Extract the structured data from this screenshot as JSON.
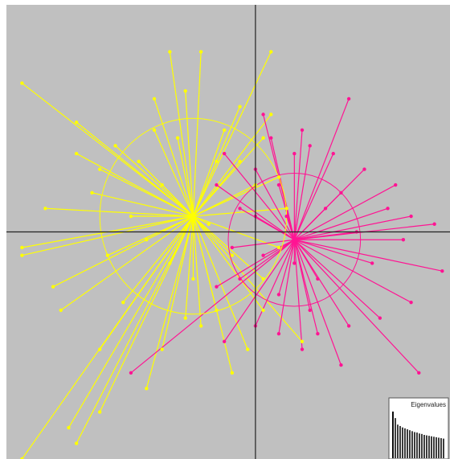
{
  "chart_data": {
    "type": "scatter",
    "chart_style": "star-plot",
    "background_color": "#c0c0c0",
    "axes_color": "#222222",
    "grid": false,
    "title": "",
    "xlabel": "",
    "ylabel": "",
    "xlim": [
      -3.2,
      2.5
    ],
    "ylim": [
      -2.9,
      2.9
    ],
    "groups": [
      {
        "color": "#ffff00",
        "centroid": [
          -0.8,
          0.2
        ],
        "ellipse": {
          "rx": 1.2,
          "ry": 1.25
        },
        "points": [
          [
            -3.0,
            1.9
          ],
          [
            -1.1,
            2.3
          ],
          [
            -0.7,
            2.3
          ],
          [
            -1.3,
            1.7
          ],
          [
            -0.9,
            1.8
          ],
          [
            -0.2,
            1.6
          ],
          [
            0.2,
            2.3
          ],
          [
            -2.3,
            1.0
          ],
          [
            -2.7,
            0.3
          ],
          [
            -3.0,
            -0.2
          ],
          [
            -3.0,
            -0.3
          ],
          [
            -2.6,
            -0.7
          ],
          [
            -2.5,
            -1.0
          ],
          [
            -1.8,
            1.1
          ],
          [
            -1.5,
            0.9
          ],
          [
            -1.6,
            0.2
          ],
          [
            -1.9,
            -0.3
          ],
          [
            -2.0,
            -1.5
          ],
          [
            -2.4,
            -2.5
          ],
          [
            -3.0,
            -2.9
          ],
          [
            -2.3,
            -2.7
          ],
          [
            -2.0,
            -2.3
          ],
          [
            -1.4,
            -2.0
          ],
          [
            -1.2,
            -1.5
          ],
          [
            -0.9,
            -1.1
          ],
          [
            -0.7,
            -1.2
          ],
          [
            -0.8,
            -0.6
          ],
          [
            -0.5,
            -1.0
          ],
          [
            -0.3,
            -1.8
          ],
          [
            -0.1,
            -1.5
          ],
          [
            0.1,
            -1.0
          ],
          [
            -0.3,
            -0.3
          ],
          [
            0.0,
            0.6
          ],
          [
            0.1,
            1.2
          ],
          [
            -0.2,
            0.9
          ],
          [
            -0.5,
            0.9
          ],
          [
            -1.0,
            1.2
          ],
          [
            -1.3,
            1.3
          ],
          [
            -1.2,
            0.6
          ],
          [
            -2.1,
            0.5
          ],
          [
            -1.7,
            -0.9
          ],
          [
            -0.4,
            1.3
          ],
          [
            0.3,
            0.7
          ],
          [
            0.3,
            -0.2
          ],
          [
            0.6,
            -1.4
          ],
          [
            0.4,
            0.3
          ],
          [
            0.2,
            1.5
          ],
          [
            -2.3,
            1.4
          ],
          [
            -1.4,
            -0.1
          ],
          [
            -2.0,
            0.8
          ],
          [
            -1.1,
            -0.4
          ],
          [
            -0.6,
            0.1
          ],
          [
            0.1,
            -0.6
          ]
        ]
      },
      {
        "color": "#ff1493",
        "centroid": [
          0.5,
          -0.1
        ],
        "ellipse": {
          "rx": 0.85,
          "ry": 0.85
        },
        "points": [
          [
            0.1,
            1.5
          ],
          [
            0.6,
            1.3
          ],
          [
            0.7,
            1.1
          ],
          [
            1.2,
            1.7
          ],
          [
            0.5,
            1.0
          ],
          [
            0.0,
            0.8
          ],
          [
            -0.5,
            0.6
          ],
          [
            -0.4,
            1.0
          ],
          [
            0.3,
            0.6
          ],
          [
            1.4,
            0.8
          ],
          [
            1.8,
            0.6
          ],
          [
            2.0,
            0.2
          ],
          [
            2.3,
            0.1
          ],
          [
            1.9,
            -0.1
          ],
          [
            2.4,
            -0.5
          ],
          [
            2.0,
            -0.9
          ],
          [
            1.6,
            -1.1
          ],
          [
            1.2,
            -1.2
          ],
          [
            1.1,
            -1.7
          ],
          [
            2.1,
            -1.8
          ],
          [
            0.6,
            -1.5
          ],
          [
            0.3,
            -1.3
          ],
          [
            0.0,
            -1.2
          ],
          [
            -0.4,
            -1.4
          ],
          [
            -0.2,
            -0.6
          ],
          [
            -0.5,
            -0.7
          ],
          [
            -1.6,
            -1.8
          ],
          [
            0.1,
            -0.3
          ],
          [
            0.4,
            0.2
          ],
          [
            0.9,
            0.3
          ],
          [
            1.1,
            0.5
          ],
          [
            0.8,
            -0.6
          ],
          [
            0.3,
            -0.8
          ],
          [
            1.5,
            -0.4
          ],
          [
            0.0,
            0.2
          ],
          [
            -0.2,
            0.3
          ],
          [
            1.0,
            1.0
          ],
          [
            0.8,
            -1.3
          ],
          [
            1.3,
            0.0
          ],
          [
            -0.3,
            -0.2
          ],
          [
            0.5,
            -0.4
          ],
          [
            0.2,
            1.2
          ],
          [
            1.7,
            0.3
          ],
          [
            0.7,
            -1.0
          ]
        ]
      }
    ],
    "inset": {
      "title": "Eigenvalues",
      "values": [
        1.0,
        0.86,
        0.72,
        0.69,
        0.66,
        0.64,
        0.62,
        0.6,
        0.58,
        0.56,
        0.55,
        0.53,
        0.52,
        0.5,
        0.49,
        0.48,
        0.47,
        0.46,
        0.45,
        0.44,
        0.43,
        0.42
      ]
    }
  }
}
